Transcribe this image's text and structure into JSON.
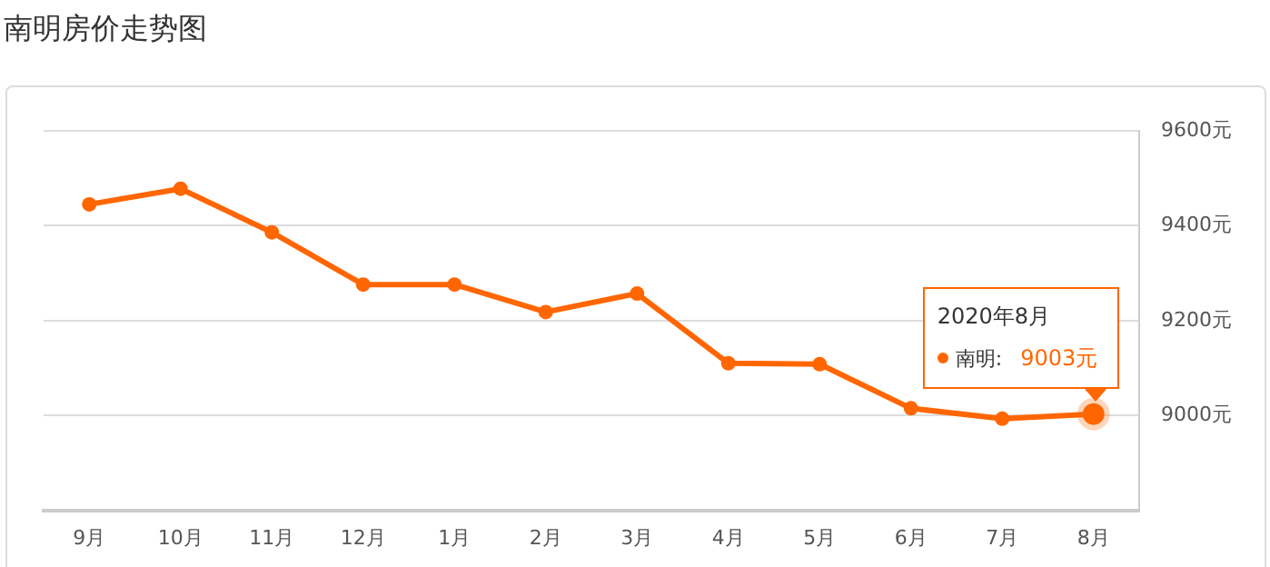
{
  "chart_data": {
    "type": "line",
    "title": "南明房价走势图",
    "categories": [
      "9月",
      "10月",
      "11月",
      "12月",
      "1月",
      "2月",
      "3月",
      "4月",
      "5月",
      "6月",
      "7月",
      "8月"
    ],
    "series": [
      {
        "name": "南明:",
        "color": "#ff6600",
        "values": [
          9445,
          9478,
          9386,
          9276,
          9276,
          9218,
          9257,
          9110,
          9108,
          9015,
          8993,
          9003
        ],
        "value_labels": [
          null,
          null,
          null,
          null,
          null,
          null,
          null,
          null,
          null,
          null,
          null,
          "9003元"
        ]
      }
    ],
    "ylim": [
      8800,
      9600
    ],
    "yticks": [
      {
        "value": 8800,
        "label": null
      },
      {
        "value": 9000,
        "label": "9000元"
      },
      {
        "value": 9200,
        "label": "9200元"
      },
      {
        "value": 9400,
        "label": "9400元"
      },
      {
        "value": 9600,
        "label": "9600元"
      }
    ],
    "grid": "y",
    "legend": "right",
    "marker": "circle",
    "line_style": "solid",
    "annotations": [
      "2020年8月"
    ]
  }
}
